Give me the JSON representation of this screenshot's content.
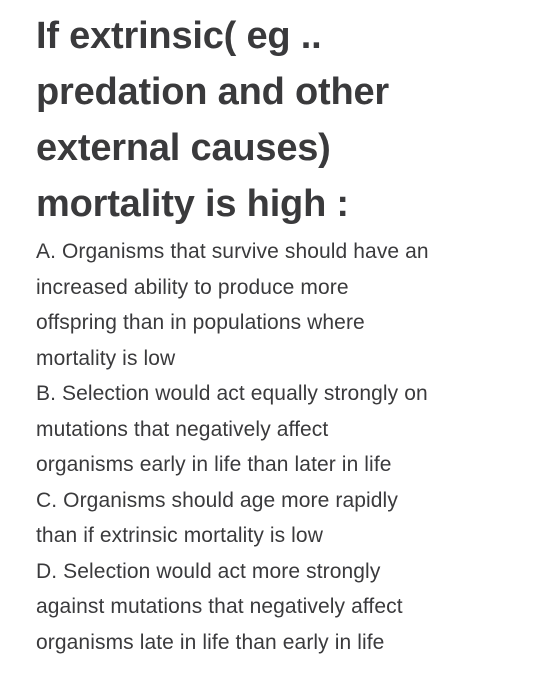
{
  "question": {
    "title_lines": [
      "If extrinsic( eg ..",
      "predation and other",
      "external causes)",
      "mortality is high :"
    ],
    "options": [
      {
        "id": "A",
        "lines": [
          "A. Organisms that survive should have an",
          "increased ability to produce more",
          "offspring than in populations where",
          "mortality is low"
        ]
      },
      {
        "id": "B",
        "lines": [
          "B. Selection would act equally strongly on",
          "mutations that negatively affect",
          "organisms early in life than later in life"
        ]
      },
      {
        "id": "C",
        "lines": [
          "C. Organisms should age more rapidly",
          "than if extrinsic mortality is low"
        ]
      },
      {
        "id": "D",
        "lines": [
          "D. Selection would act more strongly",
          "against mutations that negatively affect",
          "organisms late in life than early in life"
        ]
      }
    ]
  }
}
